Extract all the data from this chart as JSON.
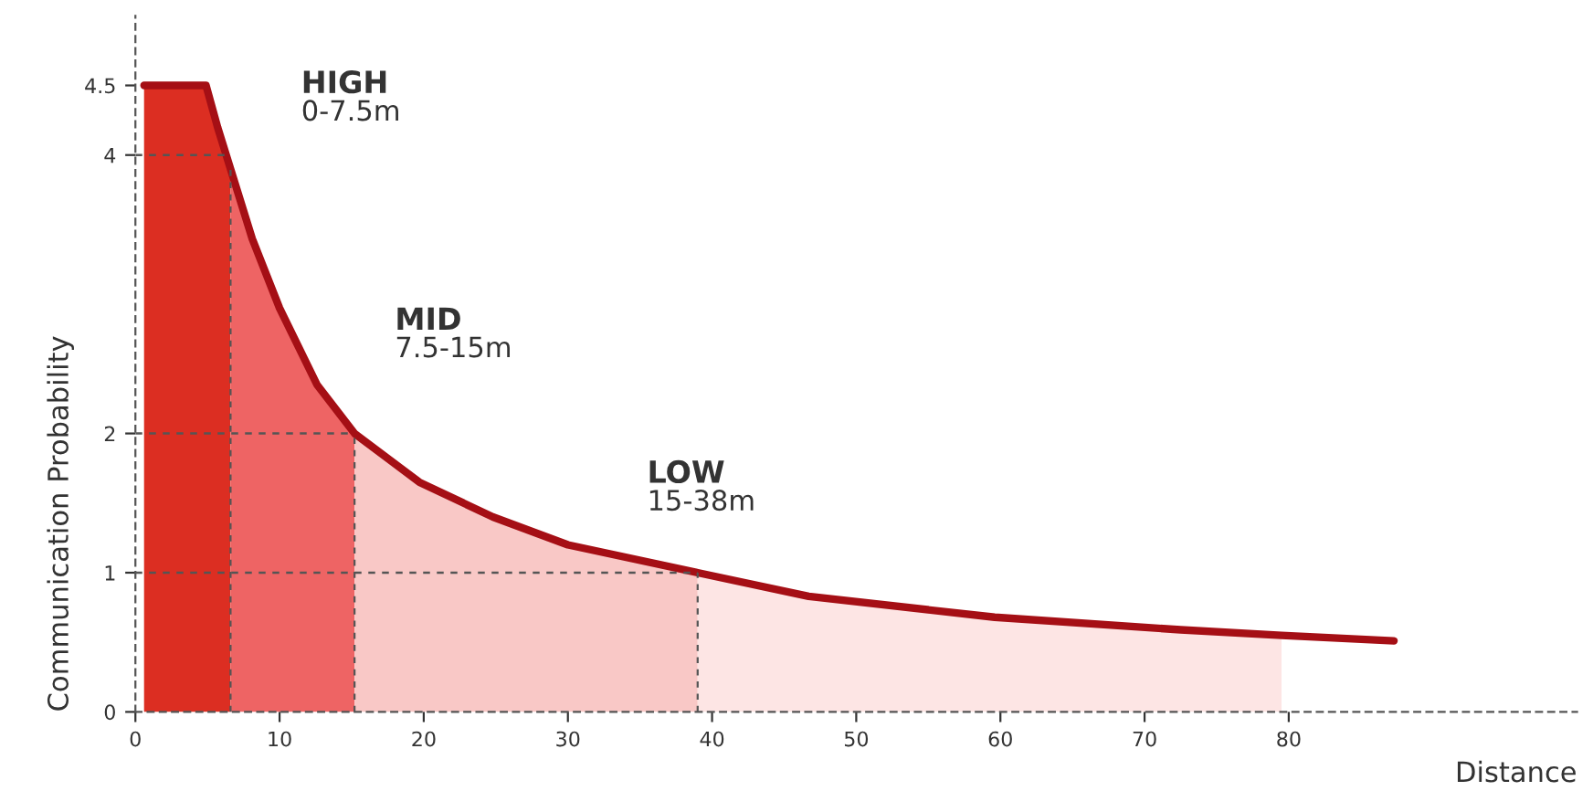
{
  "chart_data": {
    "type": "area",
    "xlabel": "Distance",
    "ylabel": "Communication Probability",
    "xlim": [
      0,
      100
    ],
    "ylim": [
      0,
      5
    ],
    "xticks": [
      0,
      10,
      20,
      30,
      40,
      50,
      60,
      70,
      80
    ],
    "yticks": [
      0,
      1,
      2,
      4,
      4.5
    ],
    "grid": false,
    "legend": false,
    "series": [
      {
        "color": "#dc2e22",
        "x": [
          0.6,
          4.9,
          5.7,
          6.6
        ],
        "values": [
          4.5,
          4.5,
          4.2,
          3.9
        ]
      },
      {
        "color": "#ee6464",
        "x": [
          6.6,
          8.1,
          10,
          12.6,
          15.2
        ],
        "values": [
          3.9,
          3.4,
          2.9,
          2.35,
          2.0
        ]
      },
      {
        "color": "#f9c8c6",
        "x": [
          15.2,
          19.7,
          24.8,
          30,
          39
        ],
        "values": [
          2.0,
          1.65,
          1.4,
          1.2,
          1.0
        ]
      },
      {
        "color": "#fde5e4",
        "x": [
          39,
          46.7,
          59.6,
          72.5,
          79.5
        ],
        "values": [
          1.0,
          0.83,
          0.68,
          0.59,
          0.55
        ]
      },
      {
        "type": "line",
        "color": "#a50f15",
        "x": [
          0.6,
          4.9,
          5.7,
          6.6,
          8.1,
          10,
          12.6,
          15.2,
          19.7,
          24.8,
          30,
          39,
          46.7,
          59.6,
          72.5,
          79.5,
          87.3
        ],
        "values": [
          4.5,
          4.5,
          4.2,
          3.9,
          3.4,
          2.9,
          2.35,
          2.0,
          1.65,
          1.4,
          1.2,
          1.0,
          0.83,
          0.68,
          0.59,
          0.55,
          0.51
        ]
      },
      {
        "type": "line",
        "color": "#555555",
        "line_style": "dashed",
        "x": [
          0,
          6.3
        ],
        "values": [
          4,
          4
        ]
      }
    ],
    "ref_lines": [
      {
        "axis": "y",
        "value": 2,
        "line_style": "dashed"
      },
      {
        "axis": "y",
        "value": 1,
        "line_style": "dashed"
      },
      {
        "axis": "x",
        "value": 6.6,
        "line_style": "dashed"
      },
      {
        "axis": "x",
        "value": 15.2,
        "line_style": "dashed"
      },
      {
        "axis": "x",
        "value": 39,
        "line_style": "dashed"
      }
    ],
    "annotations": [
      "HIGH\n0-7.5m",
      "MID\n7.5-15m",
      "LOW\n15-38m"
    ]
  }
}
